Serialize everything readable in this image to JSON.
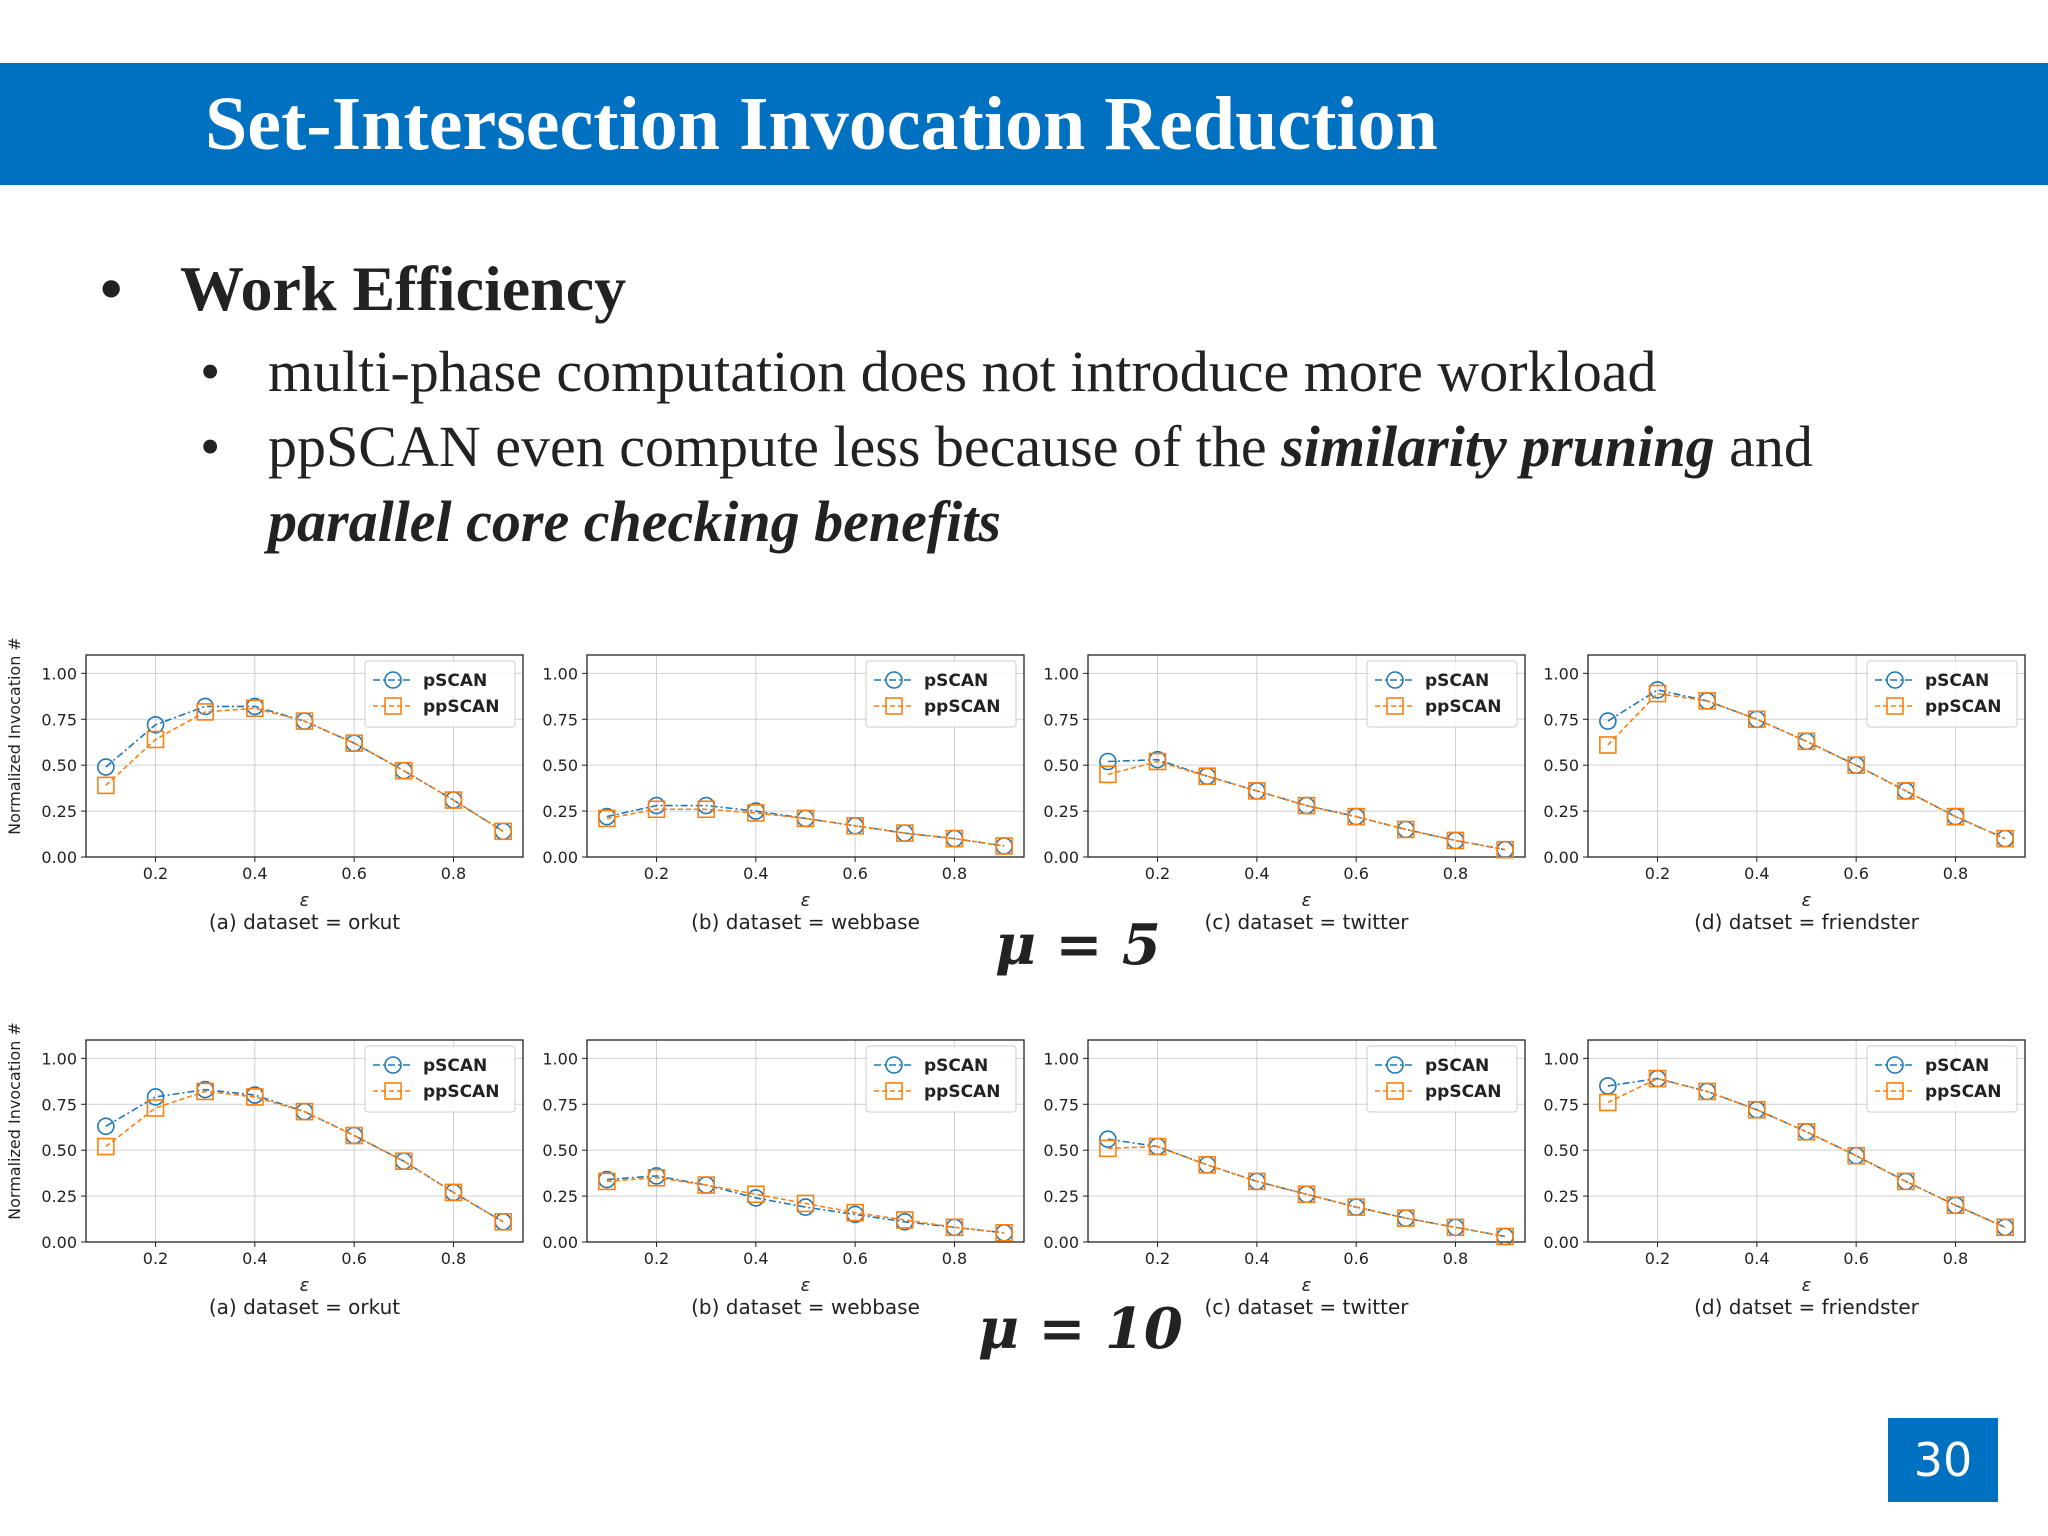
{
  "slide": {
    "title": "Set-Intersection Invocation Reduction",
    "bullet_main": "Work Efficiency",
    "bullet_marker": "•",
    "sub1": "multi-phase computation does not introduce more workload",
    "sub2_prefix": "ppSCAN even compute less because of the ",
    "sub2_em1": "similarity pruning",
    "sub2_mid": " and",
    "sub2_em2": "parallel core checking benefits",
    "mu_row1": "μ = 5",
    "mu_row2": "μ = 10",
    "page_number": "30"
  },
  "colors": {
    "title_bar": "#0070c0",
    "pscan": "#1f77b4",
    "ppscan": "#ff7f0e"
  },
  "chart_common": {
    "type": "line",
    "ylabel": "Normalized Invocation #",
    "xlabel": "ε",
    "x": [
      0.1,
      0.2,
      0.3,
      0.4,
      0.5,
      0.6,
      0.7,
      0.8,
      0.9
    ],
    "xticks": [
      "0.2",
      "0.4",
      "0.6",
      "0.8"
    ],
    "xtick_values": [
      0.2,
      0.4,
      0.6,
      0.8
    ],
    "yticks": [
      "0.00",
      "0.25",
      "0.50",
      "0.75",
      "1.00"
    ],
    "ytick_values": [
      0,
      0.25,
      0.5,
      0.75,
      1.0
    ],
    "xlim": [
      0.06,
      0.94
    ],
    "ylim": [
      0,
      1.1
    ],
    "grid": true,
    "legend": "top-right",
    "series_names": [
      "pSCAN",
      "ppSCAN"
    ]
  },
  "chart_data": [
    {
      "type": "line",
      "row": 1,
      "caption": "(a) dataset = orkut",
      "series": [
        {
          "name": "pSCAN",
          "values": [
            0.49,
            0.72,
            0.82,
            0.82,
            0.74,
            0.62,
            0.47,
            0.31,
            0.14
          ]
        },
        {
          "name": "ppSCAN",
          "values": [
            0.39,
            0.64,
            0.79,
            0.81,
            0.74,
            0.62,
            0.47,
            0.31,
            0.14
          ]
        }
      ]
    },
    {
      "type": "line",
      "row": 1,
      "caption": "(b) dataset = webbase",
      "series": [
        {
          "name": "pSCAN",
          "values": [
            0.22,
            0.28,
            0.28,
            0.25,
            0.21,
            0.17,
            0.13,
            0.1,
            0.06
          ]
        },
        {
          "name": "ppSCAN",
          "values": [
            0.21,
            0.26,
            0.26,
            0.24,
            0.21,
            0.17,
            0.13,
            0.1,
            0.06
          ]
        }
      ]
    },
    {
      "type": "line",
      "row": 1,
      "caption": "(c) dataset = twitter",
      "series": [
        {
          "name": "pSCAN",
          "values": [
            0.52,
            0.53,
            0.44,
            0.36,
            0.28,
            0.22,
            0.15,
            0.09,
            0.04
          ]
        },
        {
          "name": "ppSCAN",
          "values": [
            0.45,
            0.52,
            0.44,
            0.36,
            0.28,
            0.22,
            0.15,
            0.09,
            0.04
          ]
        }
      ]
    },
    {
      "type": "line",
      "row": 1,
      "caption": "(d) datset = friendster",
      "series": [
        {
          "name": "pSCAN",
          "values": [
            0.74,
            0.91,
            0.85,
            0.75,
            0.63,
            0.5,
            0.36,
            0.22,
            0.1
          ]
        },
        {
          "name": "ppSCAN",
          "values": [
            0.61,
            0.89,
            0.85,
            0.75,
            0.63,
            0.5,
            0.36,
            0.22,
            0.1
          ]
        }
      ]
    },
    {
      "type": "line",
      "row": 2,
      "caption": "(a) dataset = orkut",
      "series": [
        {
          "name": "pSCAN",
          "values": [
            0.63,
            0.79,
            0.83,
            0.8,
            0.71,
            0.58,
            0.44,
            0.27,
            0.11
          ]
        },
        {
          "name": "ppSCAN",
          "values": [
            0.52,
            0.73,
            0.82,
            0.79,
            0.71,
            0.58,
            0.44,
            0.27,
            0.11
          ]
        }
      ]
    },
    {
      "type": "line",
      "row": 2,
      "caption": "(b) dataset = webbase",
      "series": [
        {
          "name": "pSCAN",
          "values": [
            0.34,
            0.36,
            0.31,
            0.24,
            0.19,
            0.15,
            0.11,
            0.08,
            0.05
          ]
        },
        {
          "name": "ppSCAN",
          "values": [
            0.33,
            0.35,
            0.31,
            0.26,
            0.21,
            0.16,
            0.12,
            0.08,
            0.05
          ]
        }
      ]
    },
    {
      "type": "line",
      "row": 2,
      "caption": "(c) dataset = twitter",
      "series": [
        {
          "name": "pSCAN",
          "values": [
            0.56,
            0.52,
            0.42,
            0.33,
            0.26,
            0.19,
            0.13,
            0.08,
            0.03
          ]
        },
        {
          "name": "ppSCAN",
          "values": [
            0.51,
            0.52,
            0.42,
            0.33,
            0.26,
            0.19,
            0.13,
            0.08,
            0.03
          ]
        }
      ]
    },
    {
      "type": "line",
      "row": 2,
      "caption": "(d) datset = friendster",
      "series": [
        {
          "name": "pSCAN",
          "values": [
            0.85,
            0.89,
            0.82,
            0.72,
            0.6,
            0.47,
            0.33,
            0.2,
            0.08
          ]
        },
        {
          "name": "ppSCAN",
          "values": [
            0.76,
            0.89,
            0.82,
            0.72,
            0.6,
            0.47,
            0.33,
            0.2,
            0.08
          ]
        }
      ]
    }
  ]
}
